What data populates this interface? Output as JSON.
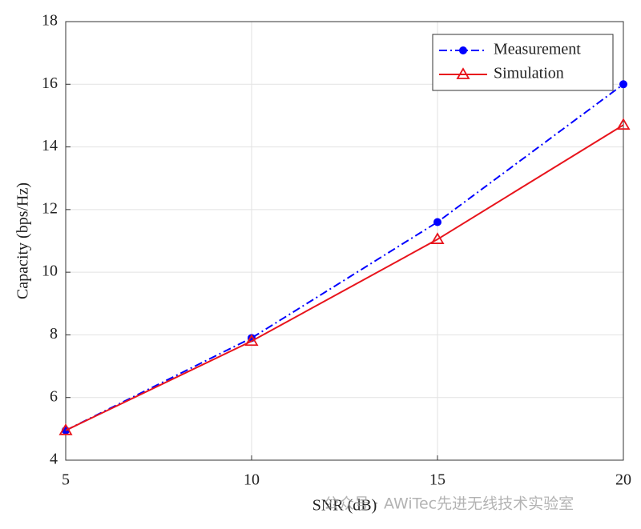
{
  "chart_data": {
    "type": "line",
    "xlabel": "SNR (dB)",
    "ylabel": "Capacity (bps/Hz)",
    "x": [
      5,
      10,
      15,
      20
    ],
    "series": [
      {
        "name": "Measurement",
        "color": "#0000ff",
        "dash": "dashdot",
        "marker": "star",
        "values": [
          4.95,
          7.9,
          11.6,
          16.0
        ]
      },
      {
        "name": "Simulation",
        "color": "#e8141c",
        "dash": "solid",
        "marker": "triangle",
        "values": [
          4.95,
          7.8,
          11.05,
          14.7
        ]
      }
    ],
    "xlim": [
      5,
      20
    ],
    "xticks": [
      5,
      10,
      15,
      20
    ],
    "ylim": [
      4,
      18
    ],
    "yticks": [
      4,
      6,
      8,
      10,
      12,
      14,
      16,
      18
    ],
    "grid": true,
    "legend": "upper right",
    "watermark": "公众号 · AWiTec先进无线技术实验室"
  }
}
